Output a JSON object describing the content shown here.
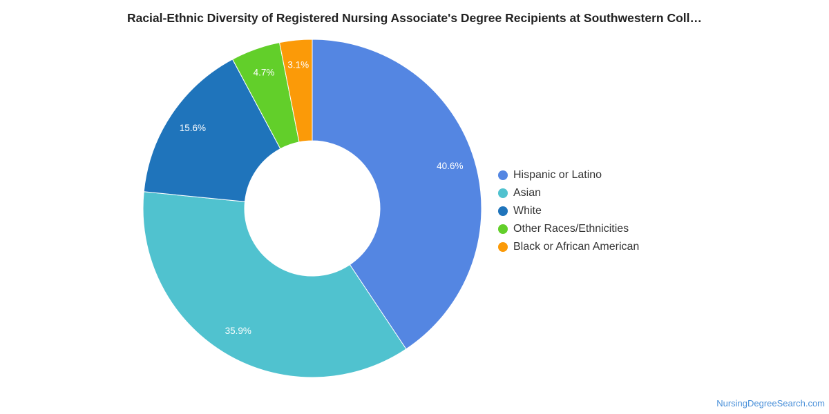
{
  "chart_data": {
    "type": "pie",
    "donut": true,
    "title": "Racial-Ethnic Diversity of Registered Nursing Associate's Degree Recipients at Southwestern Coll…",
    "slices": [
      {
        "label": "Hispanic or Latino",
        "value": 40.6,
        "display": "40.6%",
        "color": "#5486e2"
      },
      {
        "label": "Asian",
        "value": 35.9,
        "display": "35.9%",
        "color": "#50c2cf"
      },
      {
        "label": "White",
        "value": 15.6,
        "display": "15.6%",
        "color": "#1f74bb"
      },
      {
        "label": "Other Races/Ethnicities",
        "value": 4.7,
        "display": "4.7%",
        "color": "#62cf2a"
      },
      {
        "label": "Black or African American",
        "value": 3.1,
        "display": "3.1%",
        "color": "#fb9a08"
      }
    ],
    "legend_position": "right"
  },
  "footer": {
    "source": "NursingDegreeSearch.com"
  }
}
